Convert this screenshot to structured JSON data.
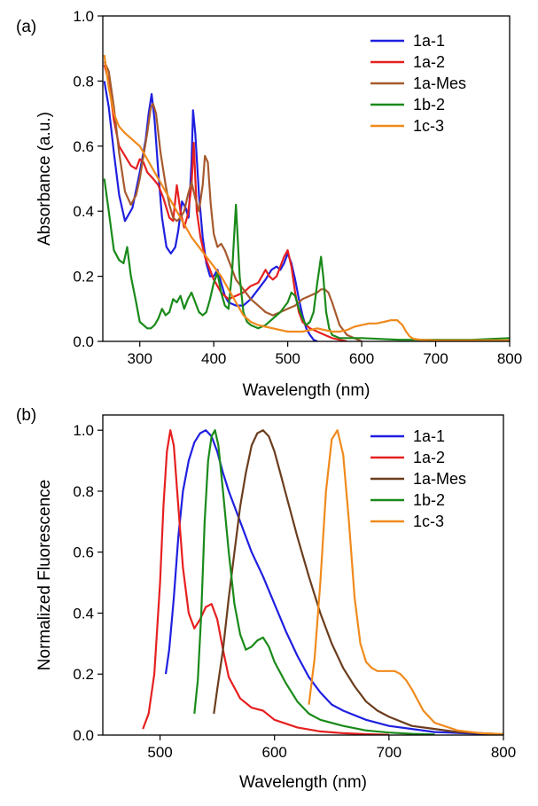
{
  "chart_data": [
    {
      "type": "line",
      "panel_label": "(a)",
      "xlabel": "Wavelength (nm)",
      "ylabel": "Absorbance (a.u.)",
      "xlim": [
        250,
        800
      ],
      "ylim": [
        0,
        1.0
      ],
      "xticks": [
        300,
        400,
        500,
        600,
        700,
        800
      ],
      "xtick_labels": [
        "300",
        "400",
        "500",
        "600",
        "700",
        "800"
      ],
      "yticks": [
        0,
        0.2,
        0.4,
        0.6,
        0.8,
        1.0
      ],
      "ytick_labels": [
        "0.0",
        "0.2",
        "0.4",
        "0.6",
        "0.8",
        "1.0"
      ],
      "grid": false,
      "legend_position": "top-right",
      "series": [
        {
          "name": "1a-1",
          "color": "#1f1fe0",
          "x": [
            252,
            258,
            265,
            272,
            280,
            290,
            300,
            308,
            312,
            316,
            320,
            325,
            330,
            336,
            342,
            348,
            352,
            357,
            362,
            366,
            370,
            372,
            375,
            380,
            385,
            390,
            395,
            400,
            405,
            410,
            415,
            420,
            430,
            440,
            450,
            460,
            470,
            478,
            485,
            490,
            495,
            500,
            505,
            510,
            515,
            520,
            525,
            530,
            535,
            540
          ],
          "y": [
            0.8,
            0.72,
            0.58,
            0.45,
            0.37,
            0.41,
            0.52,
            0.62,
            0.7,
            0.76,
            0.68,
            0.52,
            0.38,
            0.29,
            0.27,
            0.29,
            0.34,
            0.43,
            0.41,
            0.38,
            0.55,
            0.71,
            0.64,
            0.45,
            0.32,
            0.24,
            0.2,
            0.2,
            0.22,
            0.18,
            0.14,
            0.12,
            0.11,
            0.11,
            0.13,
            0.16,
            0.19,
            0.22,
            0.23,
            0.22,
            0.24,
            0.27,
            0.24,
            0.19,
            0.13,
            0.08,
            0.04,
            0.02,
            0.005,
            0.0
          ]
        },
        {
          "name": "1a-2",
          "color": "#e62020",
          "x": [
            252,
            258,
            265,
            272,
            280,
            288,
            295,
            300,
            305,
            310,
            318,
            325,
            332,
            340,
            345,
            350,
            355,
            360,
            365,
            370,
            373,
            377,
            382,
            388,
            395,
            400,
            410,
            420,
            430,
            440,
            450,
            460,
            470,
            475,
            480,
            485,
            490,
            495,
            500,
            505,
            510,
            515,
            520,
            530,
            540,
            550,
            560,
            570,
            580
          ],
          "y": [
            0.85,
            0.8,
            0.68,
            0.6,
            0.57,
            0.54,
            0.53,
            0.56,
            0.55,
            0.52,
            0.5,
            0.48,
            0.44,
            0.38,
            0.37,
            0.48,
            0.4,
            0.35,
            0.39,
            0.48,
            0.61,
            0.4,
            0.32,
            0.26,
            0.22,
            0.19,
            0.15,
            0.13,
            0.14,
            0.15,
            0.17,
            0.18,
            0.22,
            0.2,
            0.19,
            0.2,
            0.23,
            0.26,
            0.28,
            0.23,
            0.15,
            0.09,
            0.06,
            0.04,
            0.03,
            0.02,
            0.01,
            0.005,
            0.0
          ]
        },
        {
          "name": "1a-Mes",
          "color": "#a65a2e",
          "x": [
            252,
            258,
            265,
            272,
            280,
            288,
            295,
            300,
            305,
            310,
            315,
            318,
            322,
            328,
            335,
            340,
            345,
            350,
            355,
            360,
            365,
            370,
            375,
            380,
            385,
            388,
            392,
            396,
            400,
            405,
            410,
            415,
            420,
            430,
            440,
            450,
            460,
            470,
            480,
            490,
            500,
            510,
            520,
            530,
            540,
            545,
            550,
            555,
            560,
            570,
            580,
            600
          ],
          "y": [
            0.86,
            0.83,
            0.72,
            0.58,
            0.46,
            0.42,
            0.45,
            0.5,
            0.57,
            0.64,
            0.72,
            0.73,
            0.7,
            0.58,
            0.48,
            0.42,
            0.38,
            0.37,
            0.38,
            0.4,
            0.45,
            0.49,
            0.44,
            0.4,
            0.48,
            0.57,
            0.55,
            0.42,
            0.33,
            0.29,
            0.3,
            0.28,
            0.25,
            0.19,
            0.16,
            0.13,
            0.11,
            0.09,
            0.08,
            0.09,
            0.1,
            0.11,
            0.13,
            0.14,
            0.15,
            0.16,
            0.16,
            0.15,
            0.12,
            0.05,
            0.02,
            0.0
          ]
        },
        {
          "name": "1b-2",
          "color": "#1a8a1a",
          "x": [
            252,
            258,
            265,
            272,
            278,
            283,
            288,
            295,
            300,
            305,
            310,
            315,
            320,
            325,
            330,
            335,
            340,
            345,
            350,
            355,
            360,
            365,
            370,
            375,
            380,
            385,
            390,
            395,
            400,
            405,
            410,
            415,
            420,
            425,
            430,
            435,
            440,
            445,
            450,
            460,
            470,
            480,
            490,
            500,
            505,
            510,
            515,
            520,
            525,
            530,
            535,
            540,
            545,
            548,
            552,
            556,
            560,
            570,
            600,
            650,
            700,
            750,
            800
          ],
          "y": [
            0.5,
            0.4,
            0.28,
            0.25,
            0.24,
            0.29,
            0.2,
            0.12,
            0.06,
            0.05,
            0.04,
            0.04,
            0.05,
            0.07,
            0.1,
            0.08,
            0.09,
            0.13,
            0.12,
            0.14,
            0.1,
            0.13,
            0.15,
            0.12,
            0.09,
            0.08,
            0.09,
            0.13,
            0.18,
            0.21,
            0.15,
            0.11,
            0.1,
            0.22,
            0.42,
            0.2,
            0.09,
            0.06,
            0.05,
            0.04,
            0.05,
            0.07,
            0.09,
            0.12,
            0.15,
            0.14,
            0.1,
            0.07,
            0.05,
            0.06,
            0.09,
            0.18,
            0.26,
            0.2,
            0.09,
            0.04,
            0.02,
            0.01,
            0.01,
            0.005,
            0.005,
            0.005,
            0.01
          ]
        },
        {
          "name": "1c-3",
          "color": "#f08a1c",
          "x": [
            252,
            258,
            265,
            272,
            280,
            290,
            300,
            310,
            320,
            330,
            340,
            350,
            360,
            370,
            380,
            390,
            400,
            410,
            420,
            430,
            440,
            450,
            460,
            470,
            480,
            490,
            500,
            510,
            520,
            530,
            540,
            550,
            560,
            570,
            580,
            590,
            600,
            610,
            620,
            630,
            640,
            648,
            655,
            660,
            665,
            670,
            680,
            700,
            750,
            800
          ],
          "y": [
            0.88,
            0.78,
            0.7,
            0.66,
            0.64,
            0.62,
            0.6,
            0.56,
            0.52,
            0.48,
            0.44,
            0.4,
            0.36,
            0.32,
            0.29,
            0.26,
            0.23,
            0.2,
            0.16,
            0.12,
            0.08,
            0.06,
            0.05,
            0.045,
            0.04,
            0.035,
            0.03,
            0.03,
            0.03,
            0.035,
            0.04,
            0.035,
            0.03,
            0.03,
            0.035,
            0.045,
            0.05,
            0.055,
            0.055,
            0.06,
            0.065,
            0.065,
            0.05,
            0.03,
            0.015,
            0.008,
            0.005,
            0.003,
            0.003,
            0.003
          ]
        }
      ]
    },
    {
      "type": "line",
      "panel_label": "(b)",
      "xlabel": "Wavelength (nm)",
      "ylabel": "Normalized Fluorescence",
      "xlim": [
        450,
        800
      ],
      "ylim": [
        0,
        1.05
      ],
      "xticks": [
        500,
        600,
        700,
        800
      ],
      "xtick_labels": [
        "500",
        "600",
        "700",
        "800"
      ],
      "yticks": [
        0,
        0.2,
        0.4,
        0.6,
        0.8,
        1.0
      ],
      "ytick_labels": [
        "0.0",
        "0.2",
        "0.4",
        "0.6",
        "0.8",
        "1.0"
      ],
      "grid": false,
      "legend_position": "top-right",
      "series": [
        {
          "name": "1a-1",
          "color": "#1f1fe0",
          "x": [
            505,
            508,
            512,
            516,
            520,
            525,
            530,
            535,
            540,
            545,
            550,
            555,
            560,
            570,
            580,
            590,
            600,
            610,
            620,
            630,
            640,
            650,
            660,
            680,
            700,
            720,
            740,
            760,
            780,
            800
          ],
          "y": [
            0.2,
            0.28,
            0.45,
            0.65,
            0.8,
            0.9,
            0.96,
            0.99,
            1.0,
            0.98,
            0.93,
            0.86,
            0.8,
            0.7,
            0.6,
            0.52,
            0.43,
            0.34,
            0.26,
            0.19,
            0.14,
            0.1,
            0.08,
            0.05,
            0.03,
            0.02,
            0.01,
            0.007,
            0.004,
            0.002
          ]
        },
        {
          "name": "1a-2",
          "color": "#e62020",
          "x": [
            485,
            490,
            495,
            500,
            503,
            506,
            509,
            512,
            515,
            520,
            525,
            530,
            535,
            540,
            545,
            550,
            555,
            560,
            570,
            580,
            590,
            600,
            620,
            640,
            660,
            680,
            700
          ],
          "y": [
            0.02,
            0.07,
            0.2,
            0.5,
            0.75,
            0.93,
            1.0,
            0.95,
            0.8,
            0.55,
            0.4,
            0.35,
            0.38,
            0.42,
            0.43,
            0.38,
            0.28,
            0.19,
            0.12,
            0.09,
            0.08,
            0.05,
            0.025,
            0.012,
            0.006,
            0.003,
            0.001
          ]
        },
        {
          "name": "1a-Mes",
          "color": "#6b3d1e",
          "x": [
            547,
            550,
            555,
            560,
            565,
            570,
            575,
            580,
            585,
            590,
            595,
            600,
            605,
            610,
            620,
            630,
            640,
            650,
            660,
            670,
            680,
            690,
            700,
            720,
            740,
            760,
            780,
            800
          ],
          "y": [
            0.07,
            0.15,
            0.28,
            0.45,
            0.6,
            0.75,
            0.86,
            0.95,
            0.99,
            1.0,
            0.98,
            0.93,
            0.86,
            0.79,
            0.65,
            0.52,
            0.4,
            0.3,
            0.22,
            0.16,
            0.11,
            0.08,
            0.06,
            0.03,
            0.02,
            0.01,
            0.006,
            0.003
          ]
        },
        {
          "name": "1b-2",
          "color": "#1a8a1a",
          "x": [
            530,
            533,
            536,
            539,
            542,
            545,
            548,
            551,
            555,
            560,
            565,
            570,
            575,
            580,
            585,
            590,
            595,
            600,
            610,
            620,
            630,
            640,
            660,
            680,
            700,
            720,
            740
          ],
          "y": [
            0.07,
            0.18,
            0.4,
            0.7,
            0.9,
            0.98,
            1.0,
            0.95,
            0.8,
            0.6,
            0.43,
            0.33,
            0.28,
            0.29,
            0.31,
            0.32,
            0.29,
            0.24,
            0.17,
            0.11,
            0.07,
            0.05,
            0.03,
            0.015,
            0.008,
            0.004,
            0.002
          ]
        },
        {
          "name": "1c-3",
          "color": "#f08a1c",
          "x": [
            630,
            635,
            640,
            645,
            650,
            655,
            660,
            665,
            670,
            675,
            680,
            685,
            690,
            695,
            700,
            705,
            710,
            715,
            720,
            730,
            740,
            760,
            780,
            800
          ],
          "y": [
            0.1,
            0.25,
            0.5,
            0.8,
            0.97,
            1.0,
            0.92,
            0.7,
            0.45,
            0.3,
            0.24,
            0.22,
            0.21,
            0.21,
            0.21,
            0.21,
            0.2,
            0.18,
            0.15,
            0.08,
            0.04,
            0.015,
            0.006,
            0.003
          ]
        }
      ]
    }
  ]
}
